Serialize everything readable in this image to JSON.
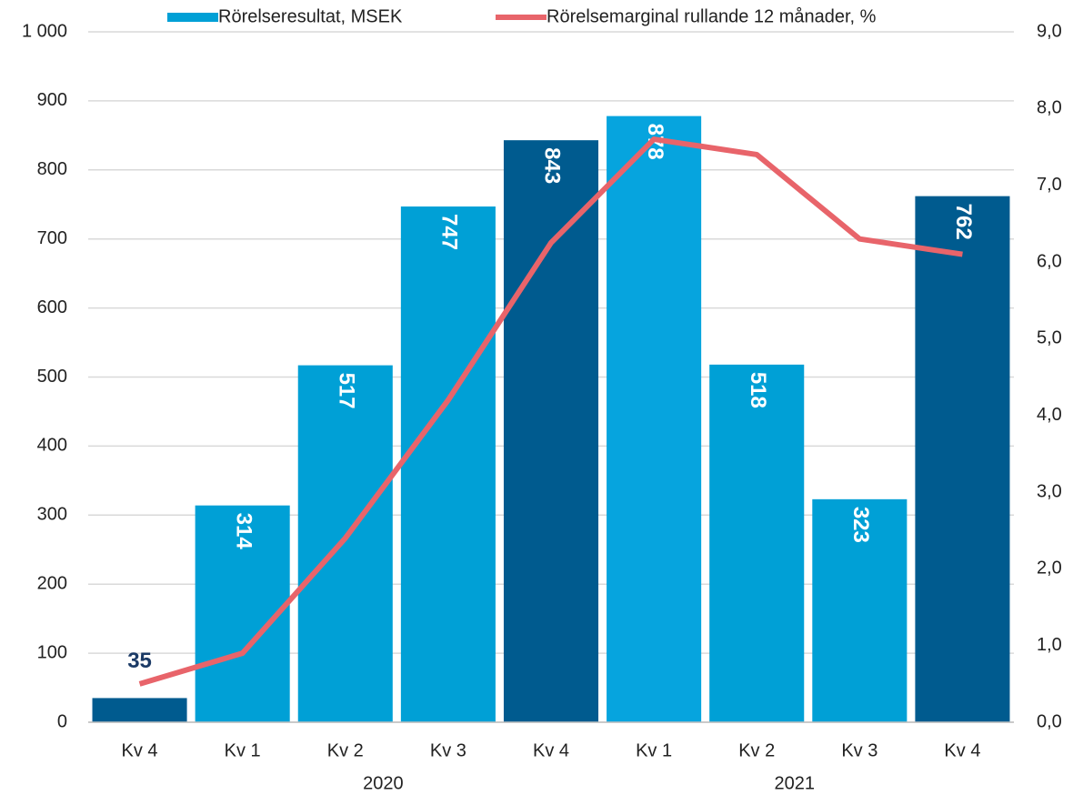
{
  "chart_data": {
    "type": "bar_line",
    "categories": [
      "Kv 4",
      "Kv 1",
      "Kv 2",
      "Kv 3",
      "Kv 4",
      "Kv 1",
      "Kv 2",
      "Kv 3",
      "Kv 4"
    ],
    "group_labels": [
      "2020",
      "2021"
    ],
    "series": [
      {
        "name": "Rörelseresultat, MSEK",
        "type": "bar",
        "color": "#00a0d6",
        "colors": [
          "#005b8f",
          "#00a0d6",
          "#00a0d6",
          "#00a0d6",
          "#005b8f",
          "#06a4de",
          "#00a0d6",
          "#00a0d6",
          "#005b8f"
        ],
        "values": [
          35,
          314,
          517,
          747,
          843,
          878,
          518,
          323,
          762
        ]
      },
      {
        "name": "Rörelsemarginal rullande 12 månader, %",
        "type": "line",
        "color": "#e8646a",
        "axis": "y2",
        "values": [
          0.5,
          0.9,
          2.4,
          4.2,
          6.25,
          7.6,
          7.4,
          6.3,
          6.1
        ]
      }
    ],
    "ylim": [
      0,
      1000
    ],
    "yticks": [
      0,
      100,
      200,
      300,
      400,
      500,
      600,
      700,
      800,
      900,
      {
        "value": 1000,
        "label": "1 000"
      }
    ],
    "y2lim": [
      0,
      9
    ],
    "y2ticks": [
      {
        "value": 0,
        "label": "0,0"
      },
      {
        "value": 1,
        "label": "1,0"
      },
      {
        "value": 2,
        "label": "2,0"
      },
      {
        "value": 3,
        "label": "3,0"
      },
      {
        "value": 4,
        "label": "4,0"
      },
      {
        "value": 5,
        "label": "5,0"
      },
      {
        "value": 6,
        "label": "6,0"
      },
      {
        "value": 7,
        "label": "7,0"
      },
      {
        "value": 8,
        "label": "8,0"
      },
      {
        "value": 9,
        "label": "9,0"
      }
    ],
    "grid": true,
    "legend": "top"
  }
}
